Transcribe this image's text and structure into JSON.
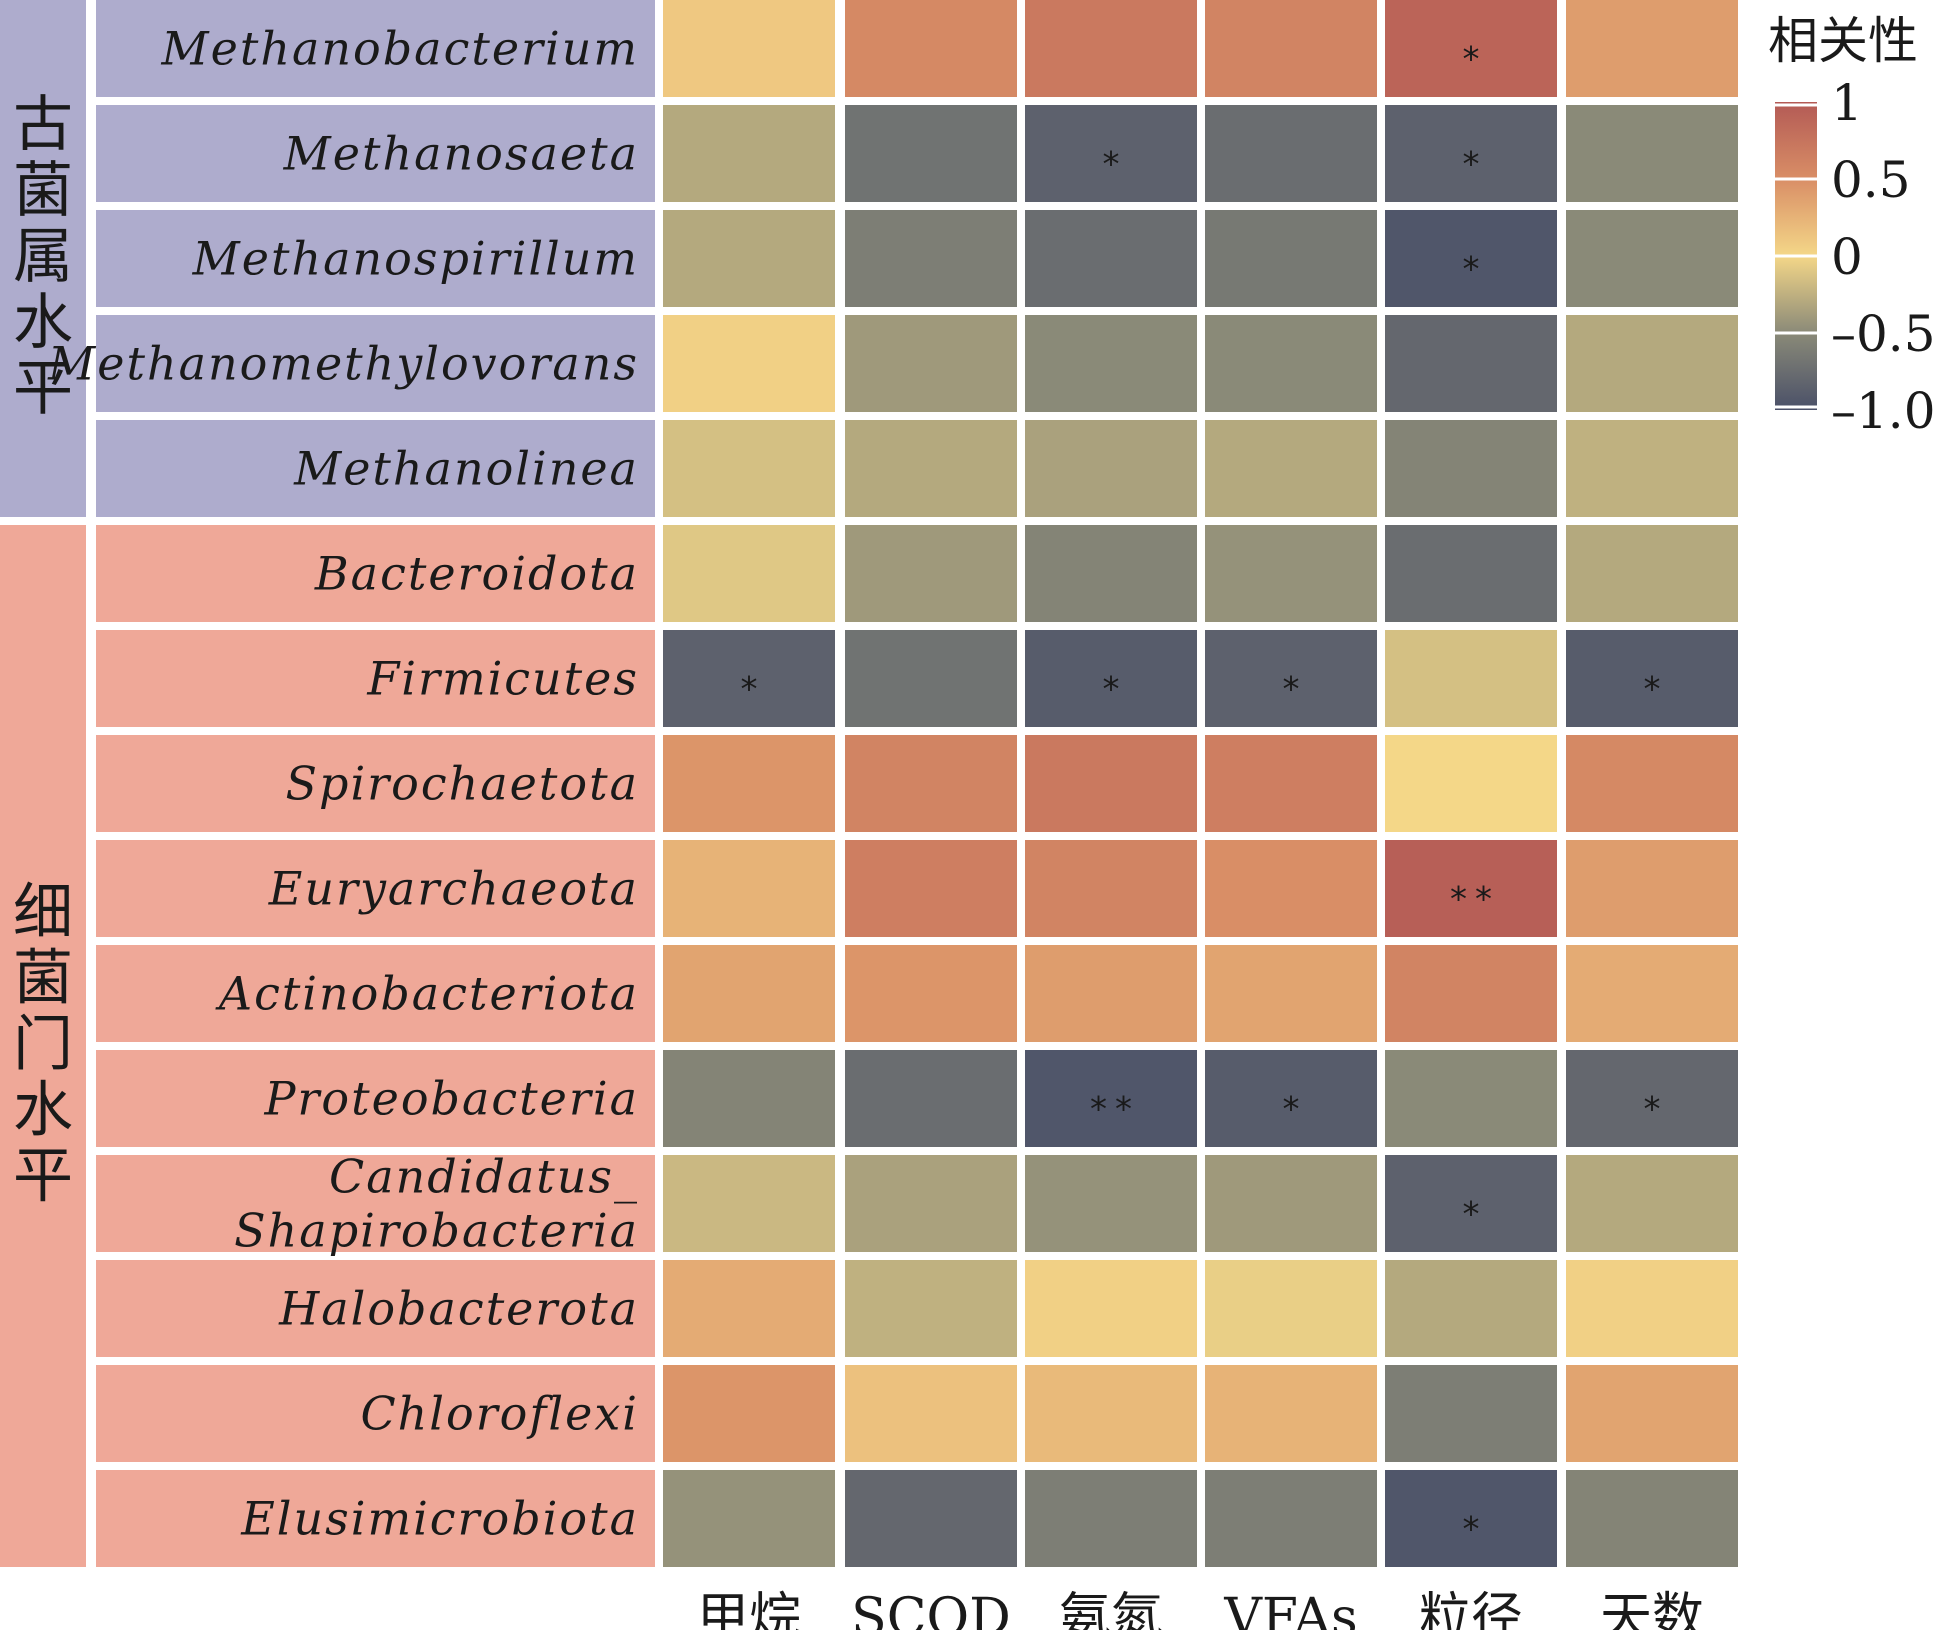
{
  "chart_data": {
    "type": "heatmap",
    "columns": [
      "甲烷",
      "SCOD",
      "氨氮",
      "VFAs",
      "粒径",
      "天数"
    ],
    "groups": [
      {
        "label": "古菌属水平",
        "color": "#aeaccd",
        "rows": [
          "Methanobacterium",
          "Methanosaeta",
          "Methanospirillum",
          "Methanomethylovorans",
          "Methanolinea"
        ]
      },
      {
        "label": "细菌门水平",
        "color": "#efa898",
        "rows": [
          "Bacteroidota",
          "Firmicutes",
          "Spirochaetota",
          "Euryarchaeota",
          "Actinobacteriota",
          "Proteobacteria",
          "Candidatus_Shapirobacteria",
          "Halobacterota",
          "Chloroflexi",
          "Elusimicrobiota"
        ]
      }
    ],
    "rows": [
      {
        "label": "Methanobacterium",
        "label_lines": [
          "Methanobacterium"
        ],
        "values": [
          0.1,
          0.55,
          0.7,
          0.6,
          0.9,
          0.4
        ],
        "sig": [
          "",
          "",
          "",
          "",
          "*",
          ""
        ]
      },
      {
        "label": "Methanosaeta",
        "label_lines": [
          "Methanosaeta"
        ],
        "values": [
          -0.3,
          -0.7,
          -0.85,
          -0.75,
          -0.85,
          -0.5
        ],
        "sig": [
          "",
          "",
          "*",
          "",
          "*",
          ""
        ]
      },
      {
        "label": "Methanospirillum",
        "label_lines": [
          "Methanospirillum"
        ],
        "values": [
          -0.3,
          -0.6,
          -0.75,
          -0.65,
          -0.95,
          -0.5
        ],
        "sig": [
          "",
          "",
          "",
          "",
          "*",
          ""
        ]
      },
      {
        "label": "Methanomethylovorans",
        "label_lines": [
          "Methanomethylovorans"
        ],
        "values": [
          0.05,
          -0.4,
          -0.5,
          -0.5,
          -0.8,
          -0.3
        ],
        "sig": [
          "",
          "",
          "",
          "",
          "",
          ""
        ]
      },
      {
        "label": "Methanolinea",
        "label_lines": [
          "Methanolinea"
        ],
        "values": [
          -0.15,
          -0.3,
          -0.35,
          -0.3,
          -0.55,
          -0.25
        ],
        "sig": [
          "",
          "",
          "",
          "",
          "",
          ""
        ]
      },
      {
        "label": "Bacteroidota",
        "label_lines": [
          "Bacteroidota"
        ],
        "values": [
          -0.1,
          -0.4,
          -0.55,
          -0.45,
          -0.75,
          -0.3
        ],
        "sig": [
          "",
          "",
          "",
          "",
          "",
          ""
        ]
      },
      {
        "label": "Firmicutes",
        "label_lines": [
          "Firmicutes"
        ],
        "values": [
          -0.85,
          -0.7,
          -0.9,
          -0.85,
          -0.15,
          -0.9
        ],
        "sig": [
          "*",
          "",
          "*",
          "*",
          "",
          "*"
        ]
      },
      {
        "label": "Spirochaetota",
        "label_lines": [
          "Spirochaetota"
        ],
        "values": [
          0.45,
          0.6,
          0.7,
          0.65,
          0.0,
          0.55
        ],
        "sig": [
          "",
          "",
          "",
          "",
          "",
          ""
        ]
      },
      {
        "label": "Euryarchaeota",
        "label_lines": [
          "Euryarchaeota"
        ],
        "values": [
          0.25,
          0.65,
          0.6,
          0.5,
          0.95,
          0.4
        ],
        "sig": [
          "",
          "",
          "",
          "",
          "**",
          ""
        ]
      },
      {
        "label": "Actinobacteriota",
        "label_lines": [
          "Actinobacteriota"
        ],
        "values": [
          0.35,
          0.45,
          0.4,
          0.35,
          0.6,
          0.3
        ],
        "sig": [
          "",
          "",
          "",
          "",
          "",
          ""
        ]
      },
      {
        "label": "Proteobacteria",
        "label_lines": [
          "Proteobacteria"
        ],
        "values": [
          -0.55,
          -0.75,
          -0.95,
          -0.9,
          -0.5,
          -0.8
        ],
        "sig": [
          "",
          "",
          "**",
          "*",
          "",
          "*"
        ]
      },
      {
        "label": "Candidatus_Shapirobacteria",
        "label_lines": [
          "Candidatus_",
          "Shapirobacteria"
        ],
        "values": [
          -0.2,
          -0.35,
          -0.45,
          -0.4,
          -0.85,
          -0.3
        ],
        "sig": [
          "",
          "",
          "",
          "",
          "*",
          ""
        ]
      },
      {
        "label": "Halobacterota",
        "label_lines": [
          "Halobacterota"
        ],
        "values": [
          0.3,
          -0.25,
          0.05,
          -0.05,
          -0.3,
          0.05
        ],
        "sig": [
          "",
          "",
          "",
          "",
          "",
          ""
        ]
      },
      {
        "label": "Chloroflexi",
        "label_lines": [
          "Chloroflexi"
        ],
        "values": [
          0.45,
          0.15,
          0.2,
          0.25,
          -0.6,
          0.35
        ],
        "sig": [
          "",
          "",
          "",
          "",
          "",
          ""
        ]
      },
      {
        "label": "Elusimicrobiota",
        "label_lines": [
          "Elusimicrobiota"
        ],
        "values": [
          -0.45,
          -0.8,
          -0.6,
          -0.6,
          -0.95,
          -0.55
        ],
        "sig": [
          "",
          "",
          "",
          "",
          "*",
          ""
        ]
      }
    ],
    "legend": {
      "title": "相关性",
      "ticks": [
        "1",
        "0.5",
        "0",
        "–0.5",
        "–1.0"
      ],
      "range": [
        -1,
        1
      ],
      "placement": "right-top",
      "colors": [
        "#4a5068",
        "#8a8a78",
        "#f4d788",
        "#d98e66",
        "#b35a55"
      ]
    },
    "grid": false
  }
}
